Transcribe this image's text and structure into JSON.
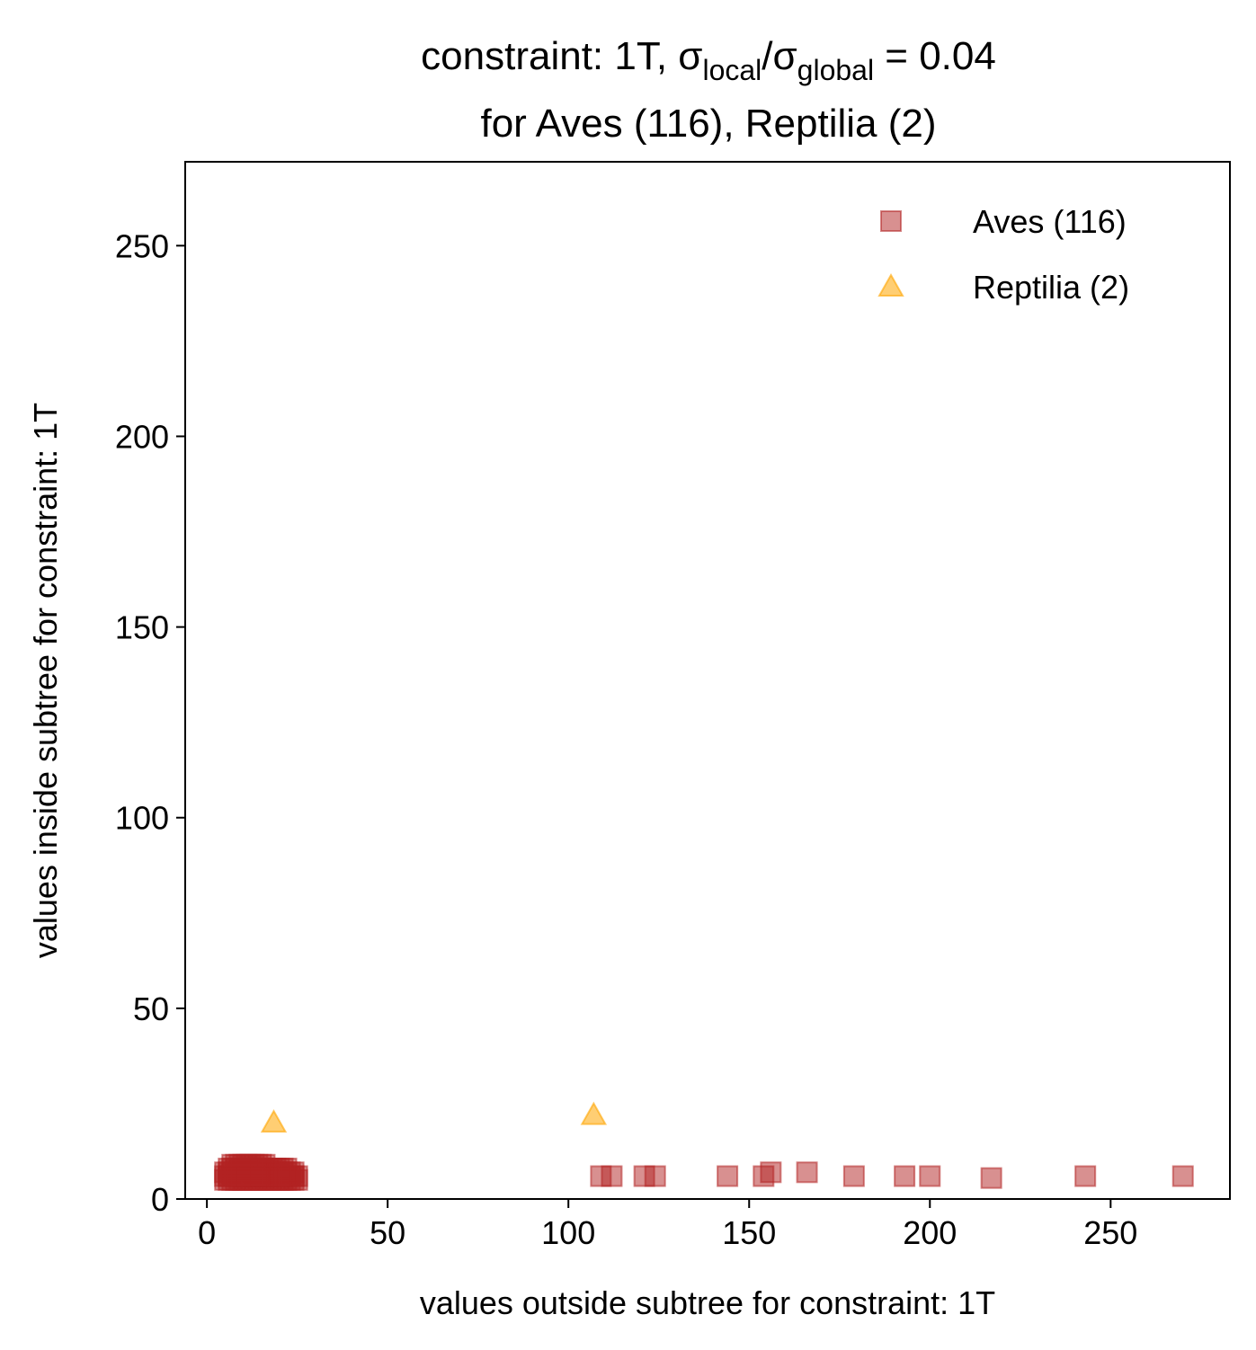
{
  "chart_data": {
    "type": "scatter",
    "title": {
      "line1_prefix": "constraint: 1T, σ",
      "line1_sub1": "local",
      "line1_mid": "/σ",
      "line1_sub2": "global",
      "line1_suffix": " =  0.04",
      "line2": "for Aves (116), Reptilia (2)"
    },
    "xlabel": "values outside subtree for constraint: 1T",
    "ylabel": "values inside subtree for constraint: 1T",
    "xlim": [
      -6,
      283
    ],
    "ylim": [
      0,
      272
    ],
    "xticks": [
      0,
      50,
      100,
      150,
      200,
      250
    ],
    "yticks": [
      0,
      50,
      100,
      150,
      200,
      250
    ],
    "grid": false,
    "legend_position": "top-right",
    "series": [
      {
        "name": "Aves (116)",
        "marker": "square",
        "color": "#b22222",
        "points": [
          [
            5,
            5
          ],
          [
            6,
            6
          ],
          [
            6,
            7
          ],
          [
            7,
            5
          ],
          [
            7,
            6
          ],
          [
            7,
            8
          ],
          [
            8,
            5
          ],
          [
            8,
            6
          ],
          [
            8,
            7
          ],
          [
            9,
            6
          ],
          [
            9,
            8
          ],
          [
            10,
            5
          ],
          [
            10,
            6
          ],
          [
            10,
            7
          ],
          [
            11,
            6
          ],
          [
            11,
            8
          ],
          [
            12,
            5
          ],
          [
            12,
            6
          ],
          [
            12,
            7
          ],
          [
            13,
            6
          ],
          [
            13,
            8
          ],
          [
            14,
            5
          ],
          [
            14,
            6
          ],
          [
            14,
            7
          ],
          [
            15,
            6
          ],
          [
            15,
            8
          ],
          [
            16,
            5
          ],
          [
            16,
            6
          ],
          [
            16,
            7
          ],
          [
            17,
            6
          ],
          [
            17,
            7
          ],
          [
            18,
            5
          ],
          [
            18,
            6
          ],
          [
            19,
            6
          ],
          [
            20,
            5
          ],
          [
            20,
            7
          ],
          [
            21,
            6
          ],
          [
            22,
            5
          ],
          [
            22,
            8
          ],
          [
            23,
            6
          ],
          [
            24,
            5
          ],
          [
            24,
            6
          ],
          [
            25,
            5
          ],
          [
            6,
            5
          ],
          [
            9,
            5
          ],
          [
            11,
            5
          ],
          [
            13,
            5
          ],
          [
            15,
            5
          ],
          [
            17,
            5
          ],
          [
            19,
            5
          ],
          [
            21,
            5
          ],
          [
            23,
            5
          ],
          [
            8,
            8
          ],
          [
            10,
            8
          ],
          [
            12,
            8
          ],
          [
            14,
            8
          ],
          [
            16,
            8
          ],
          [
            18,
            7
          ],
          [
            20,
            6
          ],
          [
            22,
            6
          ],
          [
            7,
            7
          ],
          [
            9,
            7
          ],
          [
            11,
            7
          ],
          [
            13,
            7
          ],
          [
            15,
            7
          ],
          [
            19,
            7
          ],
          [
            21,
            7
          ],
          [
            23,
            7
          ],
          [
            6,
            8
          ],
          [
            12,
            9
          ],
          [
            10,
            9
          ],
          [
            14,
            9
          ],
          [
            16,
            9
          ],
          [
            18,
            8
          ],
          [
            20,
            8
          ],
          [
            8,
            9
          ],
          [
            5,
            6
          ],
          [
            5,
            7
          ],
          [
            24,
            7
          ],
          [
            25,
            6
          ],
          [
            7,
            9
          ],
          [
            11,
            9
          ],
          [
            13,
            9
          ],
          [
            15,
            9
          ],
          [
            17,
            8
          ],
          [
            19,
            8
          ],
          [
            21,
            8
          ],
          [
            9,
            9
          ],
          [
            6,
            6
          ],
          [
            12,
            6
          ],
          [
            18,
            6
          ],
          [
            24,
            6
          ],
          [
            10,
            6
          ],
          [
            14,
            6
          ],
          [
            16,
            6
          ],
          [
            22,
            7
          ],
          [
            8,
            6
          ],
          [
            20,
            6
          ],
          [
            13,
            6
          ],
          [
            17,
            6
          ],
          [
            109,
            6
          ],
          [
            112,
            6
          ],
          [
            121,
            6
          ],
          [
            124,
            6
          ],
          [
            144,
            6
          ],
          [
            154,
            6
          ],
          [
            156,
            7
          ],
          [
            166,
            7
          ],
          [
            179,
            6
          ],
          [
            193,
            6
          ],
          [
            200,
            6
          ],
          [
            217,
            5.5
          ],
          [
            243,
            6
          ],
          [
            270,
            6
          ],
          [
            11,
            6
          ],
          [
            15,
            6
          ]
        ]
      },
      {
        "name": "Reptilia (2)",
        "marker": "triangle",
        "color": "#ffa500",
        "points": [
          [
            18.5,
            20
          ],
          [
            107,
            22
          ]
        ]
      }
    ]
  }
}
